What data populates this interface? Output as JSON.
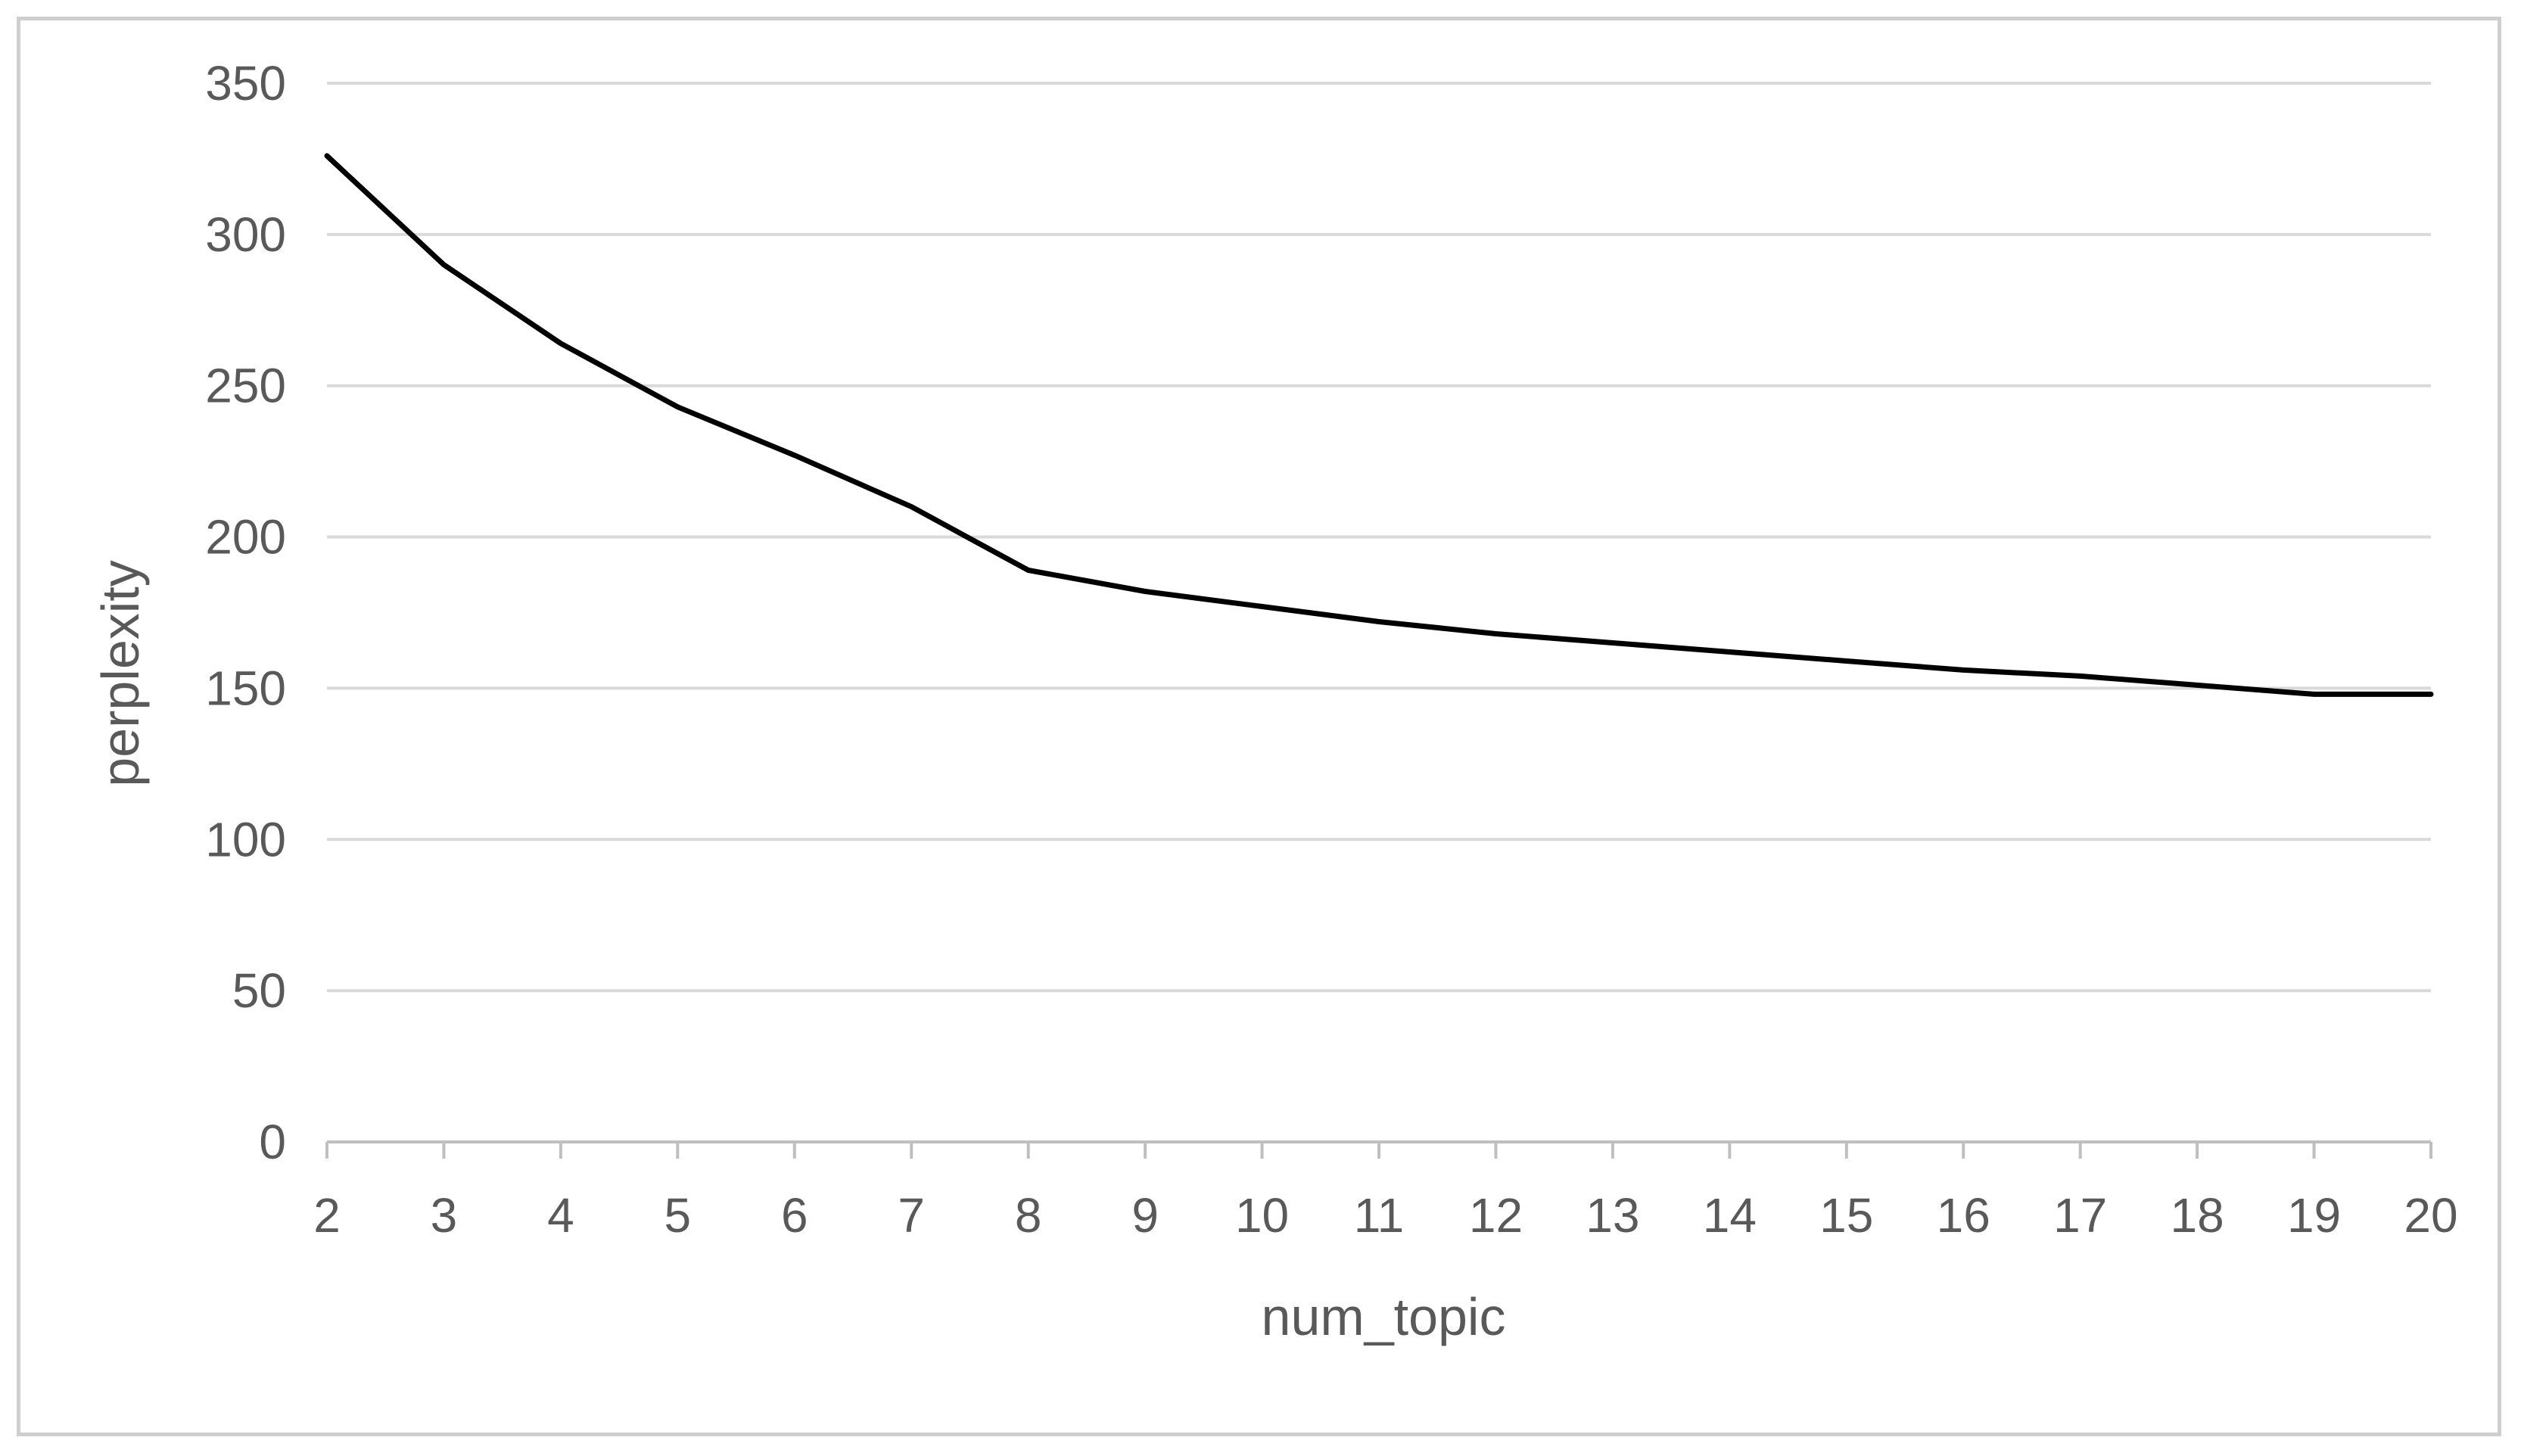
{
  "chart_data": {
    "type": "line",
    "title": "",
    "xlabel": "num_topic",
    "ylabel": "perplexity",
    "x": [
      2,
      3,
      4,
      5,
      6,
      7,
      8,
      9,
      10,
      11,
      12,
      13,
      14,
      15,
      16,
      17,
      18,
      19,
      20
    ],
    "x_tick_labels": [
      "2",
      "3",
      "4",
      "5",
      "6",
      "7",
      "8",
      "9",
      "10",
      "11",
      "12",
      "13",
      "14",
      "15",
      "16",
      "17",
      "18",
      "19",
      "20"
    ],
    "y_ticks": [
      0,
      50,
      100,
      150,
      200,
      250,
      300,
      350
    ],
    "y_tick_labels": [
      "0",
      "50",
      "100",
      "150",
      "200",
      "250",
      "300",
      "350"
    ],
    "ylim": [
      0,
      350
    ],
    "grid": "horizontal",
    "legend": "none",
    "series": [
      {
        "values": [
          326,
          290,
          264,
          243,
          227,
          210,
          189,
          182,
          177,
          172,
          168,
          165,
          162,
          159,
          156,
          154,
          151,
          148,
          148
        ],
        "color": "#000000"
      }
    ]
  },
  "colors": {
    "gridline": "#d9d9d9",
    "axis": "#bfbfbf",
    "text": "#595959",
    "frame": "#cfcfcf"
  }
}
